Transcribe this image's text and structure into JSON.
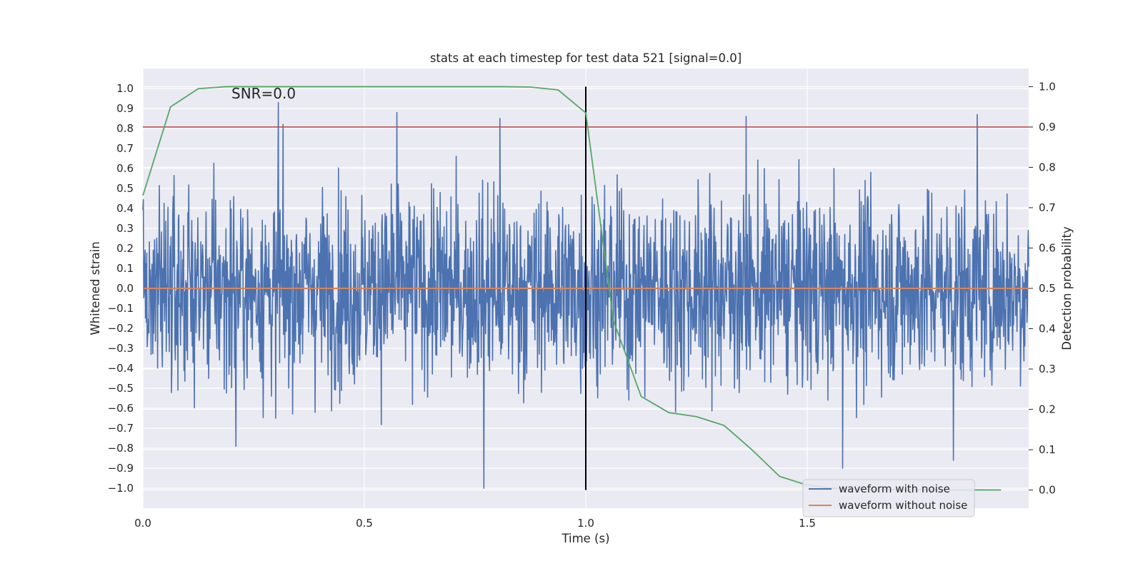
{
  "chart_data": {
    "type": "line",
    "title": "stats at each timestep for test data 521 [signal=0.0]",
    "xlabel": "Time (s)",
    "ylabel": "Whitened strain",
    "y2label": "Detection probability",
    "xlim": [
      0.0,
      2.0
    ],
    "ylim": [
      -1.1,
      1.1
    ],
    "y2lim": [
      -0.045,
      1.045
    ],
    "xticks": [
      0.0,
      0.5,
      1.0,
      1.5
    ],
    "xtick_labels": [
      "0.0",
      "0.5",
      "1.0",
      "1.5"
    ],
    "yticks": [
      1.0,
      0.9,
      0.8,
      0.7,
      0.6,
      0.5,
      0.4,
      0.3,
      0.2,
      0.1,
      0.0,
      -0.1,
      -0.2,
      -0.3,
      -0.4,
      -0.5,
      -0.6,
      -0.7,
      -0.8,
      -0.9,
      -1.0
    ],
    "ytick_labels": [
      "1.0",
      "0.9",
      "0.8",
      "0.7",
      "0.6",
      "0.5",
      "0.4",
      "0.3",
      "0.2",
      "0.1",
      "0.0",
      "−0.1",
      "−0.2",
      "−0.3",
      "−0.4",
      "−0.5",
      "−0.6",
      "−0.7",
      "−0.8",
      "−0.9",
      "−1.0"
    ],
    "y2ticks": [
      1.0,
      0.9,
      0.8,
      0.7,
      0.6,
      0.5,
      0.4,
      0.3,
      0.2,
      0.1,
      0.0
    ],
    "y2tick_labels": [
      "1.0",
      "0.9",
      "0.8",
      "0.7",
      "0.6",
      "0.5",
      "0.4",
      "0.3",
      "0.2",
      "0.1",
      "0.0"
    ],
    "grid": true,
    "legend_position": "lower-right",
    "annotation": "SNR=0.0",
    "annotation_at": {
      "x": 0.2,
      "y": 0.95
    },
    "threshold": 0.9,
    "merger_time": 1.0,
    "noisy_waveform": {
      "name": "waveform with noise",
      "color": "#4c72b0",
      "sample_count": 2048,
      "t_end": 2.0,
      "peaks": [
        {
          "x": 0.306,
          "y": 0.93
        },
        {
          "x": 0.3,
          "y": -0.65
        },
        {
          "x": 0.77,
          "y": -1.0
        },
        {
          "x": 0.574,
          "y": 0.88
        },
        {
          "x": 0.806,
          "y": 0.85
        },
        {
          "x": 1.362,
          "y": 0.86
        },
        {
          "x": 1.83,
          "y": -0.86
        },
        {
          "x": 1.884,
          "y": 0.87
        },
        {
          "x": 1.58,
          "y": -0.9
        },
        {
          "x": 0.21,
          "y": -0.79
        }
      ]
    },
    "clean_waveform": {
      "name": "waveform without noise",
      "color": "#dd8452",
      "x": [
        0.0,
        2.0
      ],
      "y": [
        0.0,
        0.0
      ]
    },
    "detection_probability": {
      "name": "detection probability",
      "color": "#55a868",
      "x": [
        0.0,
        0.0625,
        0.125,
        0.1875,
        0.25,
        0.3125,
        0.375,
        0.4375,
        0.5,
        0.5625,
        0.625,
        0.6875,
        0.75,
        0.8125,
        0.875,
        0.9375,
        1.0,
        1.0625,
        1.125,
        1.1875,
        1.25,
        1.3125,
        1.375,
        1.4375,
        1.5,
        1.5625,
        1.625,
        1.6875,
        1.75,
        1.8125,
        1.875,
        1.9375
      ],
      "y": [
        0.73,
        0.95,
        0.995,
        1.0,
        1.0,
        1.0,
        1.0,
        1.0,
        1.0,
        1.0,
        1.0,
        1.0,
        1.0,
        1.0,
        0.999,
        0.992,
        0.935,
        0.42,
        0.232,
        0.192,
        0.182,
        0.16,
        0.1,
        0.034,
        0.012,
        0.004,
        0.0015,
        0.001,
        0.0005,
        0.0003,
        0.0002,
        0.0001
      ]
    }
  }
}
